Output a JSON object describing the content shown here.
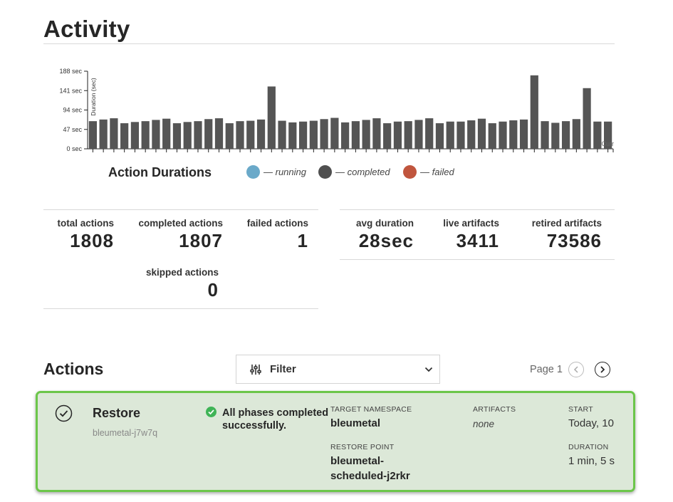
{
  "activity": {
    "title": "Activity"
  },
  "chart_data": {
    "type": "bar",
    "title": "Action Durations",
    "xlabel": "",
    "ylabel": "Duration (sec)",
    "ylim": [
      0,
      188
    ],
    "yticks": [
      "0 sec",
      "47 sec",
      "94 sec",
      "141 sec",
      "188 sec"
    ],
    "ytick_values": [
      0,
      47,
      94,
      141,
      188
    ],
    "x_end_label": "Curr",
    "series": [
      {
        "name": "completed",
        "color": "#555555",
        "values": [
          67,
          71,
          74,
          62,
          65,
          67,
          70,
          73,
          62,
          65,
          67,
          72,
          74,
          62,
          67,
          68,
          71,
          151,
          68,
          64,
          66,
          68,
          72,
          75,
          64,
          67,
          70,
          74,
          62,
          66,
          67,
          70,
          74,
          62,
          66,
          66,
          69,
          73,
          62,
          66,
          69,
          71,
          178,
          67,
          63,
          67,
          72,
          147,
          66,
          66
        ]
      }
    ],
    "legend": [
      {
        "label": "— running",
        "color": "#6aa9c9"
      },
      {
        "label": "— completed",
        "color": "#4f4f4f"
      },
      {
        "label": "— failed",
        "color": "#c0553d"
      }
    ]
  },
  "stats_left": {
    "total": {
      "label": "total actions",
      "value": "1808"
    },
    "completed": {
      "label": "completed actions",
      "value": "1807"
    },
    "failed": {
      "label": "failed actions",
      "value": "1"
    },
    "skipped": {
      "label": "skipped actions",
      "value": "0"
    }
  },
  "stats_right": {
    "avg": {
      "label": "avg duration",
      "value": "28sec"
    },
    "live": {
      "label": "live artifacts",
      "value": "3411"
    },
    "retired": {
      "label": "retired artifacts",
      "value": "73586"
    }
  },
  "actions": {
    "title": "Actions",
    "filter_label": "Filter",
    "page_label": "Page 1"
  },
  "card": {
    "name": "Restore",
    "id": "bleumetal-j7w7q",
    "status": "All phases completed successfully.",
    "target_ns_label": "TARGET NAMESPACE",
    "target_ns_value": "bleumetal",
    "restore_point_label": "RESTORE POINT",
    "restore_point_line1": "bleumetal-",
    "restore_point_line2": "scheduled-j2rkr",
    "artifacts_label": "ARTIFACTS",
    "artifacts_value": "none",
    "start_label": "START",
    "start_value": "Today, 10",
    "duration_label": "DURATION",
    "duration_value": "1 min, 5 s"
  }
}
